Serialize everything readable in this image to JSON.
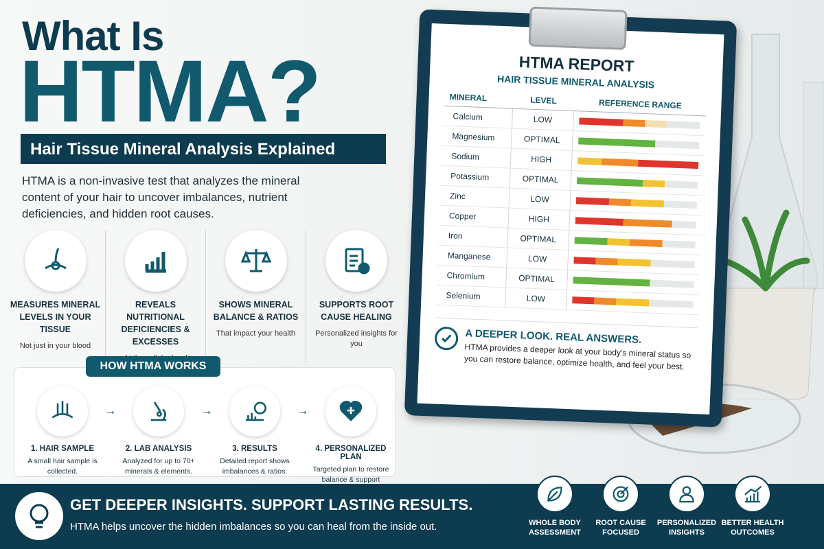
{
  "header": {
    "title_line1": "What Is",
    "title_line2": "HTMA?",
    "subtitle": "Hair Tissue Mineral Analysis Explained",
    "intro": "HTMA is a non-invasive test that analyzes the mineral content of your hair to uncover imbalances, nutrient deficiencies, and hidden root causes."
  },
  "features": [
    {
      "title": "MEASURES MINERAL LEVELS IN YOUR TISSUE",
      "caption": "Not just in your blood"
    },
    {
      "title": "REVEALS NUTRITIONAL DEFICIENCIES & EXCESSES",
      "caption": "At the cellular level"
    },
    {
      "title": "SHOWS MINERAL BALANCE & RATIOS",
      "caption": "That impact your health"
    },
    {
      "title": "SUPPORTS ROOT CAUSE HEALING",
      "caption": "Personalized insights for you"
    }
  ],
  "how_it_works": {
    "heading": "HOW HTMA WORKS",
    "steps": [
      {
        "title": "1. HAIR SAMPLE",
        "text": "A small hair sample is collected."
      },
      {
        "title": "2. LAB ANALYSIS",
        "text": "Analyzed for up to 70+ minerals & elements."
      },
      {
        "title": "3. RESULTS",
        "text": "Detailed report shows imbalances & ratios."
      },
      {
        "title": "4. PERSONALIZED PLAN",
        "text": "Targeted plan to restore balance & support healing."
      }
    ]
  },
  "report": {
    "title": "HTMA REPORT",
    "subtitle": "HAIR TISSUE MINERAL ANALYSIS",
    "columns": [
      "MINERAL",
      "LEVEL",
      "REFERENCE RANGE"
    ],
    "rows": [
      [
        "Calcium",
        "LOW"
      ],
      [
        "Magnesium",
        "OPTIMAL"
      ],
      [
        "Sodium",
        "HIGH"
      ],
      [
        "Potassium",
        "OPTIMAL"
      ],
      [
        "Zinc",
        "LOW"
      ],
      [
        "Copper",
        "HIGH"
      ],
      [
        "Iron",
        "OPTIMAL"
      ],
      [
        "Manganese",
        "LOW"
      ],
      [
        "Chromium",
        "OPTIMAL"
      ],
      [
        "Selenium",
        "LOW"
      ]
    ],
    "callout_title": "A DEEPER LOOK. REAL ANSWERS.",
    "callout_text": "HTMA provides a deeper look at your body's mineral status so you can restore balance, optimize health, and feel your best."
  },
  "footer": {
    "title": "GET DEEPER INSIGHTS. SUPPORT LASTING RESULTS.",
    "text": "HTMA helps uncover the hidden imbalances so you can heal from the inside out.",
    "badges": [
      "WHOLE BODY ASSESSMENT",
      "ROOT CAUSE FOCUSED",
      "PERSONALIZED INSIGHTS",
      "BETTER HEALTH OUTCOMES"
    ]
  }
}
